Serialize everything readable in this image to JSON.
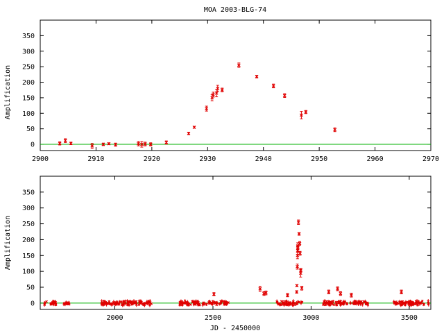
{
  "chart_data": [
    {
      "type": "scatter",
      "title": "MOA 2003-BLG-74",
      "xlabel": "",
      "ylabel": "Amplification",
      "xlim": [
        2900,
        2970
      ],
      "ylim": [
        -20,
        400
      ],
      "xticks": [
        2900,
        2910,
        2920,
        2930,
        2940,
        2950,
        2960,
        2970
      ],
      "yticks": [
        0,
        50,
        100,
        150,
        200,
        250,
        300,
        350
      ],
      "baseline": 0,
      "grid": false,
      "marker_color": "#e00000",
      "baseline_color": "#00b000",
      "series": [
        {
          "points": [
            {
              "x": 2903.5,
              "y": 3,
              "err": 5
            },
            {
              "x": 2904.5,
              "y": 12,
              "err": 6
            },
            {
              "x": 2905.5,
              "y": 3,
              "err": 4
            },
            {
              "x": 2909.3,
              "y": -5,
              "err": 8
            },
            {
              "x": 2911.3,
              "y": 0,
              "err": 4
            },
            {
              "x": 2912.3,
              "y": 2,
              "err": 3
            },
            {
              "x": 2913.5,
              "y": -1,
              "err": 5
            },
            {
              "x": 2917.6,
              "y": 2,
              "err": 7
            },
            {
              "x": 2918.2,
              "y": 0,
              "err": 9
            },
            {
              "x": 2918.8,
              "y": 1,
              "err": 6
            },
            {
              "x": 2919.8,
              "y": 0,
              "err": 5
            },
            {
              "x": 2922.6,
              "y": 6,
              "err": 5
            },
            {
              "x": 2926.6,
              "y": 35,
              "err": 4
            },
            {
              "x": 2927.6,
              "y": 55,
              "err": 3
            },
            {
              "x": 2929.8,
              "y": 115,
              "err": 8
            },
            {
              "x": 2930.8,
              "y": 150,
              "err": 10
            },
            {
              "x": 2931.0,
              "y": 160,
              "err": 8
            },
            {
              "x": 2931.6,
              "y": 165,
              "err": 12
            },
            {
              "x": 2931.8,
              "y": 180,
              "err": 10
            },
            {
              "x": 2932.6,
              "y": 175,
              "err": 6
            },
            {
              "x": 2935.6,
              "y": 255,
              "err": 7
            },
            {
              "x": 2938.8,
              "y": 218,
              "err": 4
            },
            {
              "x": 2941.8,
              "y": 188,
              "err": 6
            },
            {
              "x": 2943.8,
              "y": 157,
              "err": 6
            },
            {
              "x": 2946.8,
              "y": 94,
              "err": 12
            },
            {
              "x": 2947.6,
              "y": 104,
              "err": 5
            },
            {
              "x": 2952.8,
              "y": 47,
              "err": 6
            }
          ]
        }
      ]
    },
    {
      "type": "scatter",
      "title": "",
      "xlabel": "JD - 2450000",
      "ylabel": "Amplification",
      "xlim": [
        1620,
        3610
      ],
      "ylim": [
        -20,
        400
      ],
      "xticks": [
        2000,
        2500,
        3000,
        3500
      ],
      "yticks": [
        0,
        50,
        100,
        150,
        200,
        250,
        300,
        350
      ],
      "baseline": 0,
      "grid": false,
      "marker_color": "#e00000",
      "baseline_color": "#00b000",
      "season_ranges": [
        [
          1640,
          1700
        ],
        [
          1740,
          1770
        ],
        [
          1930,
          2190
        ],
        [
          2330,
          2580
        ],
        [
          2820,
          2960
        ],
        [
          3060,
          3290
        ],
        [
          3420,
          3600
        ]
      ],
      "spikes": [
        {
          "x": 2740,
          "y": 45,
          "err": 8
        },
        {
          "x": 2760,
          "y": 30,
          "err": 6
        },
        {
          "x": 2770,
          "y": 32,
          "err": 6
        },
        {
          "x": 3090,
          "y": 35,
          "err": 6
        },
        {
          "x": 3135,
          "y": 45,
          "err": 6
        },
        {
          "x": 3150,
          "y": 30,
          "err": 6
        },
        {
          "x": 3205,
          "y": 25,
          "err": 6
        },
        {
          "x": 3460,
          "y": 35,
          "err": 6
        },
        {
          "x": 2880,
          "y": 25,
          "err": 5
        },
        {
          "x": 2505,
          "y": 28,
          "err": 5
        }
      ],
      "event_points": [
        {
          "x": 2926.6,
          "y": 35,
          "err": 4
        },
        {
          "x": 2927.6,
          "y": 55,
          "err": 3
        },
        {
          "x": 2929.8,
          "y": 115,
          "err": 8
        },
        {
          "x": 2930.8,
          "y": 150,
          "err": 10
        },
        {
          "x": 2931.6,
          "y": 165,
          "err": 12
        },
        {
          "x": 2931.8,
          "y": 180,
          "err": 10
        },
        {
          "x": 2932.6,
          "y": 175,
          "err": 6
        },
        {
          "x": 2935.6,
          "y": 255,
          "err": 7
        },
        {
          "x": 2938.8,
          "y": 218,
          "err": 4
        },
        {
          "x": 2941.8,
          "y": 188,
          "err": 6
        },
        {
          "x": 2943.8,
          "y": 157,
          "err": 6
        },
        {
          "x": 2946.8,
          "y": 94,
          "err": 12
        },
        {
          "x": 2947.6,
          "y": 104,
          "err": 5
        },
        {
          "x": 2952.8,
          "y": 47,
          "err": 6
        }
      ]
    }
  ]
}
